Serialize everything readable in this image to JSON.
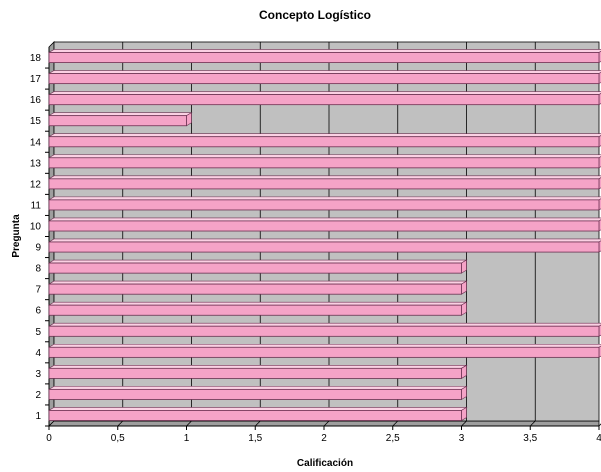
{
  "chart_data": {
    "type": "bar",
    "orientation": "horizontal",
    "title": "Concepto Logístico",
    "xlabel": "Calificación",
    "ylabel": "Pregunta",
    "categories": [
      "1",
      "2",
      "3",
      "4",
      "5",
      "6",
      "7",
      "8",
      "9",
      "10",
      "11",
      "12",
      "13",
      "14",
      "15",
      "16",
      "17",
      "18"
    ],
    "values": [
      3,
      3,
      3,
      4,
      4,
      3,
      3,
      3,
      4,
      4,
      4,
      4,
      4,
      4,
      1,
      4,
      4,
      4
    ],
    "xlim": [
      0,
      4
    ],
    "xticks": [
      "0",
      "0,5",
      "1",
      "1,5",
      "2",
      "2,5",
      "3",
      "3,5",
      "4"
    ],
    "grid": true,
    "legend": "none",
    "colors": {
      "bar_fill": "#f5a3c7",
      "bar_top": "#fbd0e3",
      "bar_edge": "#6b3050",
      "plot_bg": "#c0c0c0",
      "wall": "#9e9e9e",
      "gridline": "#000000"
    }
  }
}
